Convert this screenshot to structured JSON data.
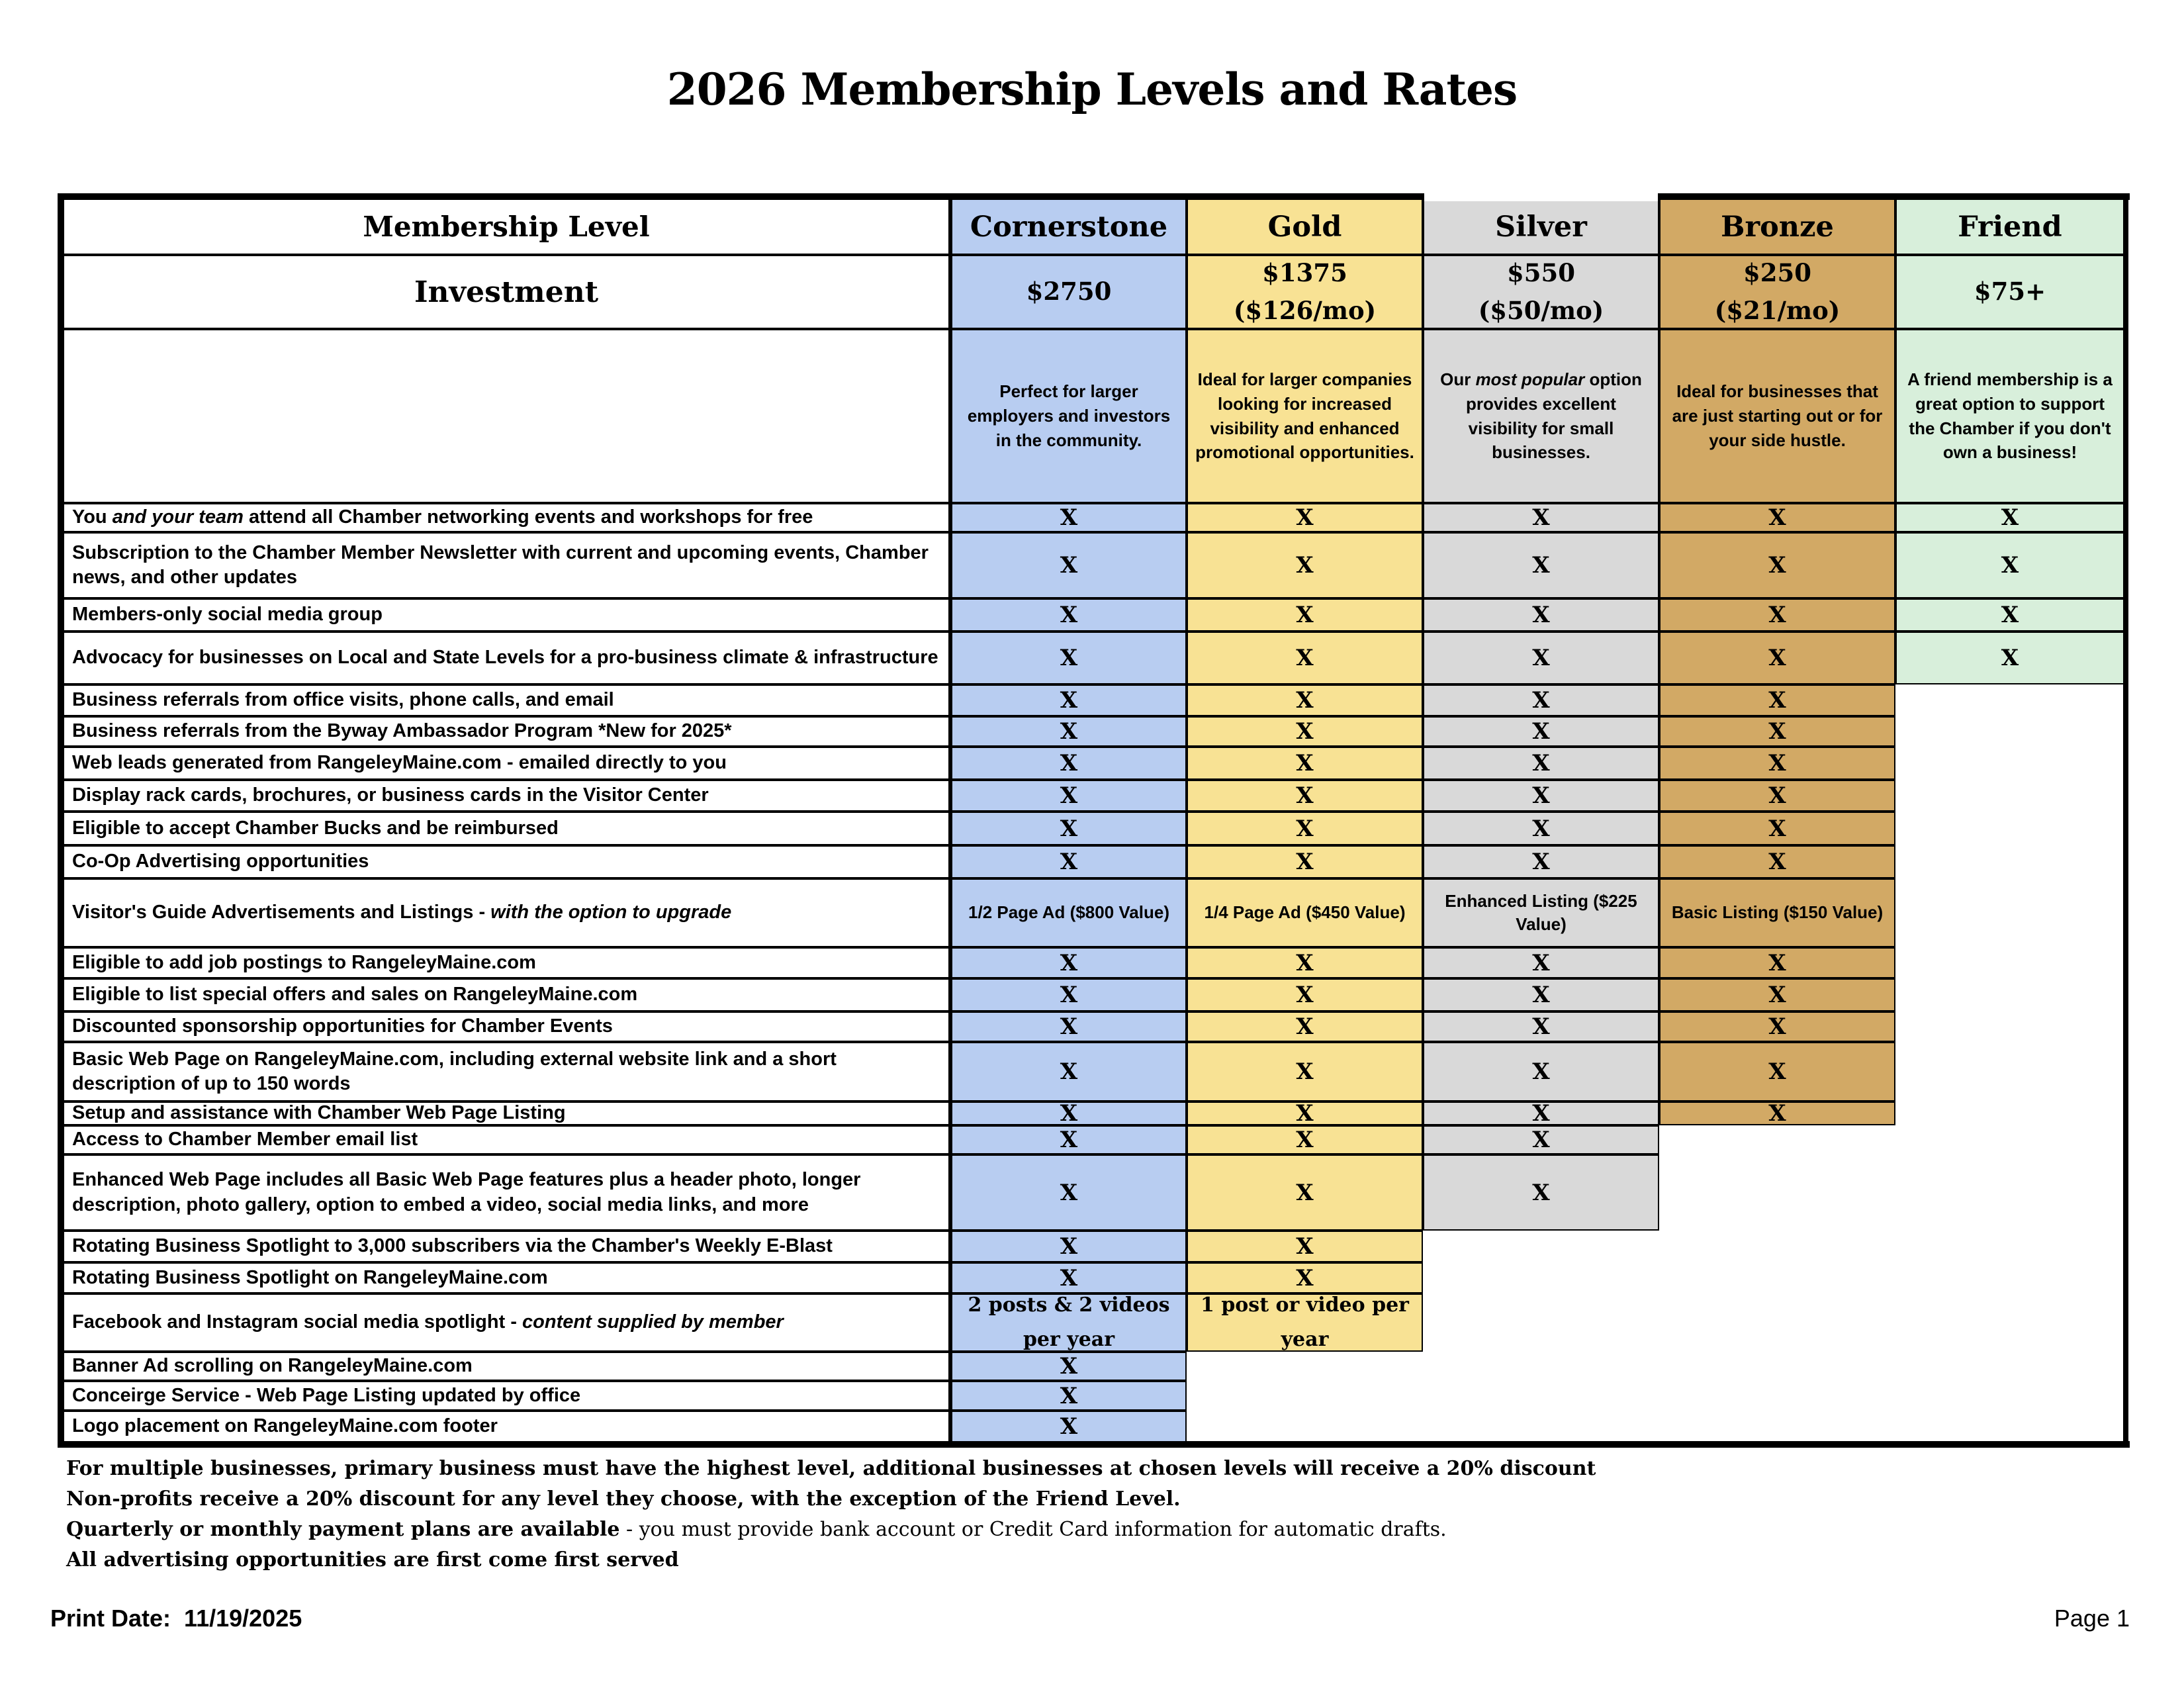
{
  "title": "2026 Membership Levels and Rates",
  "table": {
    "header": {
      "level_label": "Membership Level",
      "investment_label": "Investment",
      "levels": [
        {
          "name": "Cornerstone",
          "color": "#b8cdf1",
          "price_lines": [
            "$2750"
          ],
          "description": [
            {
              "text": "Perfect for larger employers and investors in the community."
            }
          ]
        },
        {
          "name": "Gold",
          "color": "#f8e294",
          "price_lines": [
            "$1375",
            "($126/mo)"
          ],
          "description": [
            {
              "text": "Ideal for larger companies looking for increased visibility and enhanced promotional opportunities."
            }
          ]
        },
        {
          "name": "Silver",
          "color": "#d9d9d9",
          "price_lines": [
            "$550",
            "($50/mo)"
          ],
          "description": [
            {
              "text": "Our "
            },
            {
              "text": "most popular",
              "italic": true
            },
            {
              "text": " option provides excellent visibility for small businesses."
            }
          ]
        },
        {
          "name": "Bronze",
          "color": "#d2a965",
          "price_lines": [
            "$250",
            "($21/mo)"
          ],
          "description": [
            {
              "text": "Ideal for businesses that are just starting out or for your side hustle."
            }
          ]
        },
        {
          "name": "Friend",
          "color": "#d8efdb",
          "price_lines": [
            "$75+"
          ],
          "description": [
            {
              "text": "A friend membership is a great option to support the Chamber if you don't own a business!"
            }
          ]
        }
      ]
    },
    "rows": [
      {
        "feature": [
          {
            "text": "You "
          },
          {
            "text": "and your team",
            "italic": true
          },
          {
            "text": " attend all Chamber networking events and workshops for free"
          }
        ],
        "cells": [
          "X",
          "X",
          "X",
          "X",
          "X"
        ]
      },
      {
        "feature": [
          {
            "text": "Subscription to the Chamber Member Newsletter with current and upcoming events, Chamber news, and other updates"
          }
        ],
        "cells": [
          "X",
          "X",
          "X",
          "X",
          "X"
        ]
      },
      {
        "feature": [
          {
            "text": "Members-only social media group"
          }
        ],
        "cells": [
          "X",
          "X",
          "X",
          "X",
          "X"
        ]
      },
      {
        "feature": [
          {
            "text": "Advocacy for businesses on Local and State Levels for a pro-business climate & infrastructure"
          }
        ],
        "cells": [
          "X",
          "X",
          "X",
          "X",
          "X"
        ]
      },
      {
        "feature": [
          {
            "text": "Business referrals from office visits, phone calls, and email"
          }
        ],
        "cells": [
          "X",
          "X",
          "X",
          "X",
          null
        ]
      },
      {
        "feature": [
          {
            "text": "Business referrals from the Byway Ambassador Program *New for 2025*"
          }
        ],
        "cells": [
          "X",
          "X",
          "X",
          "X",
          null
        ]
      },
      {
        "feature": [
          {
            "text": "Web leads generated from RangeleyMaine.com - emailed directly to you"
          }
        ],
        "cells": [
          "X",
          "X",
          "X",
          "X",
          null
        ]
      },
      {
        "feature": [
          {
            "text": "Display rack cards, brochures, or business cards in the Visitor Center"
          }
        ],
        "cells": [
          "X",
          "X",
          "X",
          "X",
          null
        ]
      },
      {
        "feature": [
          {
            "text": "Eligible to accept Chamber Bucks and be reimbursed"
          }
        ],
        "cells": [
          "X",
          "X",
          "X",
          "X",
          null
        ]
      },
      {
        "feature": [
          {
            "text": "Co-Op Advertising opportunities"
          }
        ],
        "cells": [
          "X",
          "X",
          "X",
          "X",
          null
        ]
      },
      {
        "feature": [
          {
            "text": "Visitor's Guide Advertisements and Listings - "
          },
          {
            "text": "with the option to upgrade",
            "italic": true
          }
        ],
        "cells": [
          "1/2 Page Ad ($800 Value)",
          "1/4 Page Ad ($450 Value)",
          "Enhanced Listing ($225 Value)",
          "Basic Listing ($150 Value)",
          null
        ],
        "cell_style": "value"
      },
      {
        "feature": [
          {
            "text": "Eligible to add job postings to RangeleyMaine.com"
          }
        ],
        "cells": [
          "X",
          "X",
          "X",
          "X",
          null
        ]
      },
      {
        "feature": [
          {
            "text": "Eligible to list special offers and sales on RangeleyMaine.com"
          }
        ],
        "cells": [
          "X",
          "X",
          "X",
          "X",
          null
        ]
      },
      {
        "feature": [
          {
            "text": "Discounted sponsorship opportunities for Chamber Events"
          }
        ],
        "cells": [
          "X",
          "X",
          "X",
          "X",
          null
        ]
      },
      {
        "feature": [
          {
            "text": "Basic Web Page on RangeleyMaine.com, including external website link and a short description of up to 150 words"
          }
        ],
        "cells": [
          "X",
          "X",
          "X",
          "X",
          null
        ]
      },
      {
        "feature": [
          {
            "text": "Setup and assistance with Chamber Web Page Listing"
          }
        ],
        "cells": [
          "X",
          "X",
          "X",
          "X",
          null
        ]
      },
      {
        "feature": [
          {
            "text": "Access to Chamber Member email list"
          }
        ],
        "cells": [
          "X",
          "X",
          "X",
          null,
          null
        ]
      },
      {
        "feature": [
          {
            "text": "Enhanced Web Page includes all Basic Web Page features plus a header photo, longer description, photo gallery, option to embed a video, social media links, and more"
          }
        ],
        "cells": [
          "X",
          "X",
          "X",
          null,
          null
        ]
      },
      {
        "feature": [
          {
            "text": "Rotating Business Spotlight to 3,000 subscribers via the Chamber's Weekly E-Blast"
          }
        ],
        "cells": [
          "X",
          "X",
          null,
          null,
          null
        ]
      },
      {
        "feature": [
          {
            "text": "Rotating Business Spotlight on RangeleyMaine.com"
          }
        ],
        "cells": [
          "X",
          "X",
          null,
          null,
          null
        ]
      },
      {
        "feature": [
          {
            "text": "Facebook and Instagram social media spotlight - "
          },
          {
            "text": "content supplied by member",
            "italic": true
          }
        ],
        "cells": [
          "2 posts & 2 videos per year",
          "1 post or video per year",
          null,
          null,
          null
        ],
        "cell_style": "plan"
      },
      {
        "feature": [
          {
            "text": "Banner Ad scrolling on RangeleyMaine.com"
          }
        ],
        "cells": [
          "X",
          null,
          null,
          null,
          null
        ]
      },
      {
        "feature": [
          {
            "text": "Conceirge Service - Web Page Listing updated by office"
          }
        ],
        "cells": [
          "X",
          null,
          null,
          null,
          null
        ]
      },
      {
        "feature": [
          {
            "text": "Logo placement on RangeleyMaine.com footer"
          }
        ],
        "cells": [
          "X",
          null,
          null,
          null,
          null
        ]
      }
    ]
  },
  "notes": [
    [
      {
        "text": "For multiple businesses, primary business must have the highest level, additional businesses at chosen levels will receive a 20% discount",
        "bold": true
      }
    ],
    [
      {
        "text": "Non-profits receive a 20% discount for any level they choose, with the exception of the Friend Level.",
        "bold": true
      }
    ],
    [
      {
        "text": "Quarterly or monthly payment plans are available",
        "bold": true
      },
      {
        "text": " - you must provide bank account or Credit Card information for automatic drafts."
      }
    ],
    [
      {
        "text": "All advertising opportunities are first come first served",
        "bold": true
      }
    ]
  ],
  "footer": {
    "print_date_label": "Print Date:",
    "print_date": "11/19/2025",
    "page": "Page 1"
  }
}
